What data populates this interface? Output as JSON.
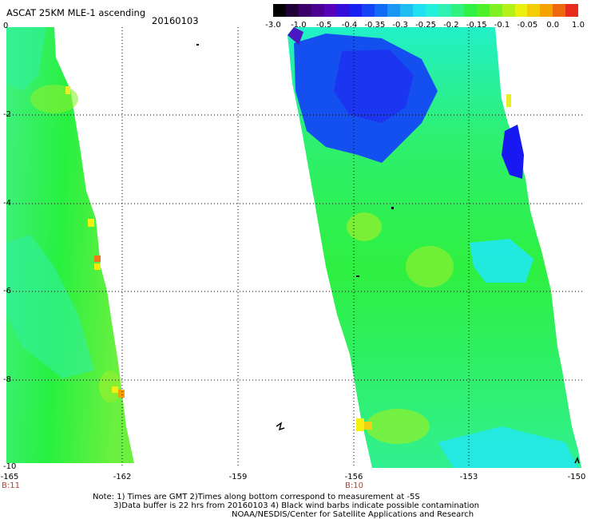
{
  "header": {
    "title": "ASCAT 25KM MLE-1 ascending",
    "date": "20160103"
  },
  "colorbar": {
    "ticks": [
      "-3.0",
      "-1.0",
      "-0.5",
      "-0.4",
      "-0.35",
      "-0.3",
      "-0.25",
      "-0.2",
      "-0.15",
      "-0.1",
      "-0.05",
      "0.0",
      "1.0"
    ],
    "colors": [
      "#000000",
      "#3a0063",
      "#5a00b4",
      "#1c17f0",
      "#0e5ef6",
      "#1fb0f0",
      "#20f0f0",
      "#33f3a0",
      "#2df030",
      "#8cf020",
      "#f4f010",
      "#f4a000",
      "#e82c1c"
    ]
  },
  "map": {
    "x_ticks": [
      "-165",
      "-162",
      "-159",
      "-156",
      "-153",
      "-150"
    ],
    "y_ticks": [
      "0",
      "-2",
      "-4",
      "-6",
      "-8",
      "-10"
    ],
    "bottom_labels": [
      "B:11",
      "B:10"
    ]
  },
  "notes": {
    "line1": "Note: 1) Times are GMT 2)Times along bottom correspond to measurement at -5S",
    "line2": "3)Data buffer is 22 hrs from 20160103 4) Black wind barbs indicate possible contamination",
    "line3": "NOAA/NESDIS/Center for Satellite Applications and Research"
  }
}
